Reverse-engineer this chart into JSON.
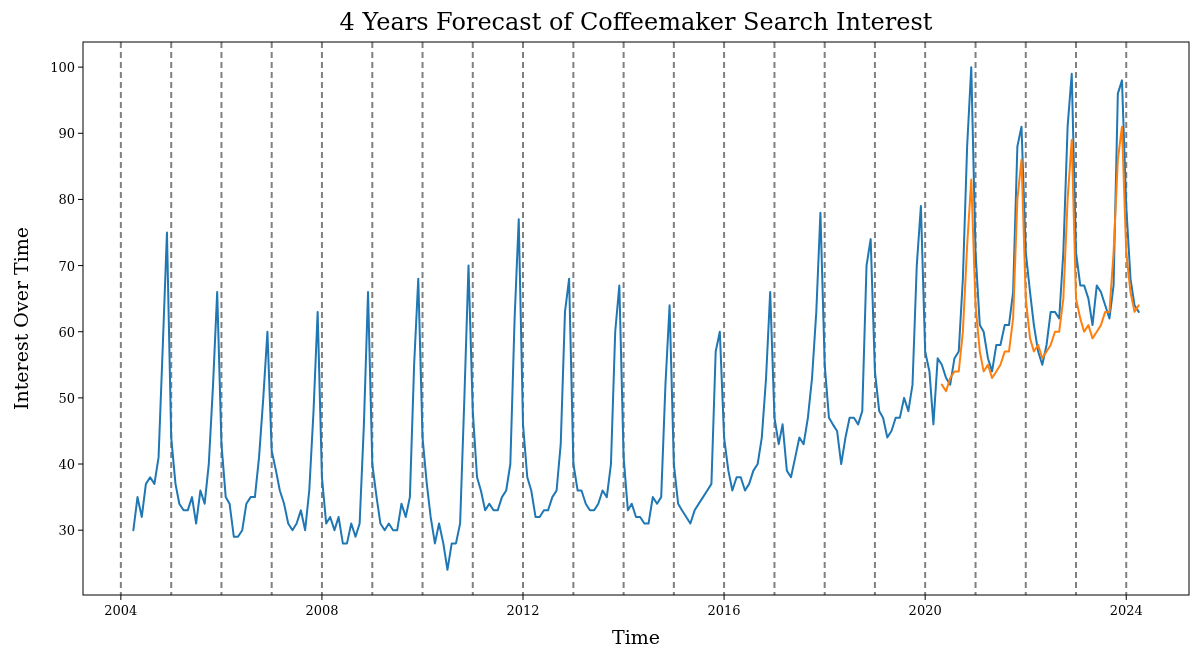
{
  "chart_data": {
    "type": "line",
    "title": "4 Years Forecast of Coffeemaker Search Interest",
    "xlabel": "Time",
    "ylabel": "Interest Over Time",
    "x": [
      "2004-04",
      "2004-05",
      "2004-06",
      "2004-07",
      "2004-08",
      "2004-09",
      "2004-10",
      "2004-11",
      "2004-12",
      "2005-01",
      "2005-02",
      "2005-03",
      "2005-04",
      "2005-05",
      "2005-06",
      "2005-07",
      "2005-08",
      "2005-09",
      "2005-10",
      "2005-11",
      "2005-12",
      "2006-01",
      "2006-02",
      "2006-03",
      "2006-04",
      "2006-05",
      "2006-06",
      "2006-07",
      "2006-08",
      "2006-09",
      "2006-10",
      "2006-11",
      "2006-12",
      "2007-01",
      "2007-02",
      "2007-03",
      "2007-04",
      "2007-05",
      "2007-06",
      "2007-07",
      "2007-08",
      "2007-09",
      "2007-10",
      "2007-11",
      "2007-12",
      "2008-01",
      "2008-02",
      "2008-03",
      "2008-04",
      "2008-05",
      "2008-06",
      "2008-07",
      "2008-08",
      "2008-09",
      "2008-10",
      "2008-11",
      "2008-12",
      "2009-01",
      "2009-02",
      "2009-03",
      "2009-04",
      "2009-05",
      "2009-06",
      "2009-07",
      "2009-08",
      "2009-09",
      "2009-10",
      "2009-11",
      "2009-12",
      "2010-01",
      "2010-02",
      "2010-03",
      "2010-04",
      "2010-05",
      "2010-06",
      "2010-07",
      "2010-08",
      "2010-09",
      "2010-10",
      "2010-11",
      "2010-12",
      "2011-01",
      "2011-02",
      "2011-03",
      "2011-04",
      "2011-05",
      "2011-06",
      "2011-07",
      "2011-08",
      "2011-09",
      "2011-10",
      "2011-11",
      "2011-12",
      "2012-01",
      "2012-02",
      "2012-03",
      "2012-04",
      "2012-05",
      "2012-06",
      "2012-07",
      "2012-08",
      "2012-09",
      "2012-10",
      "2012-11",
      "2012-12",
      "2013-01",
      "2013-02",
      "2013-03",
      "2013-04",
      "2013-05",
      "2013-06",
      "2013-07",
      "2013-08",
      "2013-09",
      "2013-10",
      "2013-11",
      "2013-12",
      "2014-01",
      "2014-02",
      "2014-03",
      "2014-04",
      "2014-05",
      "2014-06",
      "2014-07",
      "2014-08",
      "2014-09",
      "2014-10",
      "2014-11",
      "2014-12",
      "2015-01",
      "2015-02",
      "2015-03",
      "2015-04",
      "2015-05",
      "2015-06",
      "2015-07",
      "2015-08",
      "2015-09",
      "2015-10",
      "2015-11",
      "2015-12",
      "2016-01",
      "2016-02",
      "2016-03",
      "2016-04",
      "2016-05",
      "2016-06",
      "2016-07",
      "2016-08",
      "2016-09",
      "2016-10",
      "2016-11",
      "2016-12",
      "2017-01",
      "2017-02",
      "2017-03",
      "2017-04",
      "2017-05",
      "2017-06",
      "2017-07",
      "2017-08",
      "2017-09",
      "2017-10",
      "2017-11",
      "2017-12",
      "2018-01",
      "2018-02",
      "2018-03",
      "2018-04",
      "2018-05",
      "2018-06",
      "2018-07",
      "2018-08",
      "2018-09",
      "2018-10",
      "2018-11",
      "2018-12",
      "2019-01",
      "2019-02",
      "2019-03",
      "2019-04",
      "2019-05",
      "2019-06",
      "2019-07",
      "2019-08",
      "2019-09",
      "2019-10",
      "2019-11",
      "2019-12",
      "2020-01",
      "2020-02",
      "2020-03",
      "2020-04",
      "2020-05",
      "2020-06",
      "2020-07",
      "2020-08",
      "2020-09",
      "2020-10",
      "2020-11",
      "2020-12",
      "2021-01",
      "2021-02",
      "2021-03",
      "2021-04",
      "2021-05",
      "2021-06",
      "2021-07",
      "2021-08",
      "2021-09",
      "2021-10",
      "2021-11",
      "2021-12",
      "2022-01",
      "2022-02",
      "2022-03",
      "2022-04",
      "2022-05",
      "2022-06",
      "2022-07",
      "2022-08",
      "2022-09",
      "2022-10",
      "2022-11",
      "2022-12",
      "2023-01",
      "2023-02",
      "2023-03",
      "2023-04",
      "2023-05",
      "2023-06",
      "2023-07",
      "2023-08",
      "2023-09",
      "2023-10",
      "2023-11",
      "2023-12",
      "2024-01",
      "2024-02",
      "2024-03",
      "2024-04"
    ],
    "series": [
      {
        "color": "#1f77b4",
        "values": [
          30,
          35,
          32,
          37,
          38,
          37,
          41,
          58,
          75,
          44,
          37,
          34,
          33,
          33,
          35,
          31,
          36,
          34,
          40,
          52,
          66,
          43,
          35,
          34,
          29,
          29,
          30,
          34,
          35,
          35,
          41,
          50,
          60,
          42,
          39,
          36,
          34,
          31,
          30,
          31,
          33,
          30,
          36,
          48,
          63,
          38,
          31,
          32,
          30,
          32,
          28,
          28,
          31,
          29,
          31,
          46,
          66,
          40,
          35,
          31,
          30,
          31,
          30,
          30,
          34,
          32,
          35,
          55,
          68,
          44,
          37,
          32,
          28,
          31,
          28,
          24,
          28,
          28,
          31,
          50,
          70,
          48,
          38,
          36,
          33,
          34,
          33,
          33,
          35,
          36,
          40,
          62,
          77,
          46,
          38,
          36,
          32,
          32,
          33,
          33,
          35,
          36,
          43,
          63,
          68,
          40,
          36,
          36,
          34,
          33,
          33,
          34,
          36,
          35,
          40,
          60,
          67,
          41,
          33,
          34,
          32,
          32,
          31,
          31,
          35,
          34,
          35,
          52,
          64,
          40,
          34,
          33,
          32,
          31,
          33,
          34,
          35,
          36,
          37,
          57,
          60,
          44,
          39,
          36,
          38,
          38,
          36,
          37,
          39,
          40,
          44,
          53,
          66,
          47,
          43,
          46,
          39,
          38,
          41,
          44,
          43,
          47,
          53,
          63,
          78,
          55,
          47,
          46,
          45,
          40,
          44,
          47,
          47,
          46,
          48,
          70,
          74,
          54,
          48,
          47,
          44,
          45,
          47,
          47,
          50,
          48,
          52,
          70,
          79,
          57,
          54,
          46,
          56,
          55,
          53,
          52,
          56,
          57,
          68,
          88,
          100,
          72,
          61,
          60,
          56,
          54,
          58,
          58,
          61,
          61,
          66,
          88,
          91,
          72,
          66,
          61,
          57,
          55,
          58,
          63,
          63,
          62,
          72,
          91,
          99,
          72,
          67,
          67,
          65,
          61,
          67,
          66,
          64,
          62,
          67,
          96,
          98,
          79,
          68,
          64,
          63
        ]
      },
      {
        "color": "#ff7f0e",
        "x": [
          "2020-05",
          "2020-06",
          "2020-07",
          "2020-08",
          "2020-09",
          "2020-10",
          "2020-11",
          "2020-12",
          "2021-01",
          "2021-02",
          "2021-03",
          "2021-04",
          "2021-05",
          "2021-06",
          "2021-07",
          "2021-08",
          "2021-09",
          "2021-10",
          "2021-11",
          "2021-12",
          "2022-01",
          "2022-02",
          "2022-03",
          "2022-04",
          "2022-05",
          "2022-06",
          "2022-07",
          "2022-08",
          "2022-09",
          "2022-10",
          "2022-11",
          "2022-12",
          "2023-01",
          "2023-02",
          "2023-03",
          "2023-04",
          "2023-05",
          "2023-06",
          "2023-07",
          "2023-08",
          "2023-09",
          "2023-10",
          "2023-11",
          "2023-12",
          "2024-01",
          "2024-02",
          "2024-03",
          "2024-04"
        ],
        "values": [
          52,
          51,
          53,
          54,
          54,
          60,
          73,
          83,
          64,
          57,
          54,
          55,
          53,
          54,
          55,
          57,
          57,
          62,
          80,
          86,
          65,
          59,
          57,
          58,
          56,
          57,
          58,
          60,
          60,
          65,
          80,
          89,
          65,
          62,
          60,
          61,
          59,
          60,
          61,
          63,
          63,
          72,
          86,
          91,
          72,
          66,
          63,
          64
        ]
      }
    ],
    "xlim": [
      "2003-04",
      "2025-04"
    ],
    "xticks": [
      {
        "value": "2004",
        "label": "2004"
      },
      {
        "value": "2008",
        "label": "2008"
      },
      {
        "value": "2012",
        "label": "2012"
      },
      {
        "value": "2016",
        "label": "2016"
      },
      {
        "value": "2020",
        "label": "2020"
      },
      {
        "value": "2024",
        "label": "2024"
      }
    ],
    "ylim": [
      20.2,
      103.8
    ],
    "yticks": [
      30,
      40,
      50,
      60,
      70,
      80,
      90,
      100
    ],
    "ref_lines": [
      {
        "axis": "x",
        "value": "2004-01",
        "color": "#808080",
        "line_style": "dashed"
      },
      {
        "axis": "x",
        "value": "2005-01",
        "color": "#808080",
        "line_style": "dashed"
      },
      {
        "axis": "x",
        "value": "2006-01",
        "color": "#808080",
        "line_style": "dashed"
      },
      {
        "axis": "x",
        "value": "2007-01",
        "color": "#808080",
        "line_style": "dashed"
      },
      {
        "axis": "x",
        "value": "2008-01",
        "color": "#808080",
        "line_style": "dashed"
      },
      {
        "axis": "x",
        "value": "2009-01",
        "color": "#808080",
        "line_style": "dashed"
      },
      {
        "axis": "x",
        "value": "2010-01",
        "color": "#808080",
        "line_style": "dashed"
      },
      {
        "axis": "x",
        "value": "2011-01",
        "color": "#808080",
        "line_style": "dashed"
      },
      {
        "axis": "x",
        "value": "2012-01",
        "color": "#808080",
        "line_style": "dashed"
      },
      {
        "axis": "x",
        "value": "2013-01",
        "color": "#808080",
        "line_style": "dashed"
      },
      {
        "axis": "x",
        "value": "2014-01",
        "color": "#808080",
        "line_style": "dashed"
      },
      {
        "axis": "x",
        "value": "2015-01",
        "color": "#808080",
        "line_style": "dashed"
      },
      {
        "axis": "x",
        "value": "2016-01",
        "color": "#808080",
        "line_style": "dashed"
      },
      {
        "axis": "x",
        "value": "2017-01",
        "color": "#808080",
        "line_style": "dashed"
      },
      {
        "axis": "x",
        "value": "2018-01",
        "color": "#808080",
        "line_style": "dashed"
      },
      {
        "axis": "x",
        "value": "2019-01",
        "color": "#808080",
        "line_style": "dashed"
      },
      {
        "axis": "x",
        "value": "2020-01",
        "color": "#808080",
        "line_style": "dashed"
      },
      {
        "axis": "x",
        "value": "2021-01",
        "color": "#808080",
        "line_style": "dashed"
      },
      {
        "axis": "x",
        "value": "2022-01",
        "color": "#808080",
        "line_style": "dashed"
      },
      {
        "axis": "x",
        "value": "2023-01",
        "color": "#808080",
        "line_style": "dashed"
      },
      {
        "axis": "x",
        "value": "2024-01",
        "color": "#808080",
        "line_style": "dashed"
      }
    ]
  }
}
